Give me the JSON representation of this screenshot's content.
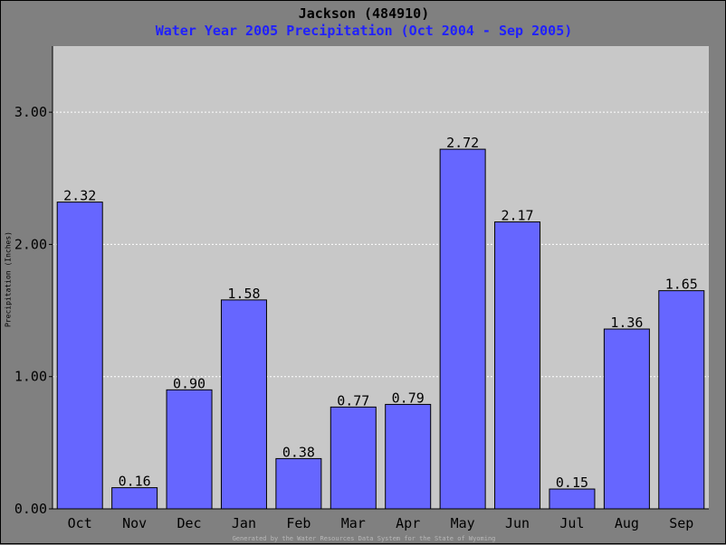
{
  "header": {
    "title": "Jackson (484910)",
    "subtitle": "Water Year 2005 Precipitation (Oct 2004 - Sep 2005)"
  },
  "footer": {
    "credit": "Generated by the Water Resources Data System for the State of Wyoming"
  },
  "colors": {
    "background": "#808080",
    "plot_area": "#c8c8c8",
    "bar_fill": "#6666ff",
    "bar_stroke": "#000000",
    "gridline": "#ffffff",
    "title": "#000000",
    "subtitle": "#2020ff"
  },
  "chart_data": {
    "type": "bar",
    "title": "Jackson (484910)",
    "subtitle": "Water Year 2005 Precipitation (Oct 2004 - Sep 2005)",
    "xlabel": "",
    "ylabel": "Precipitation (Inches)",
    "categories": [
      "Oct",
      "Nov",
      "Dec",
      "Jan",
      "Feb",
      "Mar",
      "Apr",
      "May",
      "Jun",
      "Jul",
      "Aug",
      "Sep"
    ],
    "values": [
      2.32,
      0.16,
      0.9,
      1.58,
      0.38,
      0.77,
      0.79,
      2.72,
      2.17,
      0.15,
      1.36,
      1.65
    ],
    "data_labels": [
      "2.32",
      "0.16",
      "0.90",
      "1.58",
      "0.38",
      "0.77",
      "0.79",
      "2.72",
      "2.17",
      "0.15",
      "1.36",
      "1.65"
    ],
    "yticks": [
      0,
      1,
      2,
      3
    ],
    "ytick_labels": [
      "0.00",
      "1.00",
      "2.00",
      "3.00"
    ],
    "ylim": [
      0,
      3.5
    ],
    "grid": true,
    "grid_style": "dotted horizontal",
    "legend": "none"
  }
}
